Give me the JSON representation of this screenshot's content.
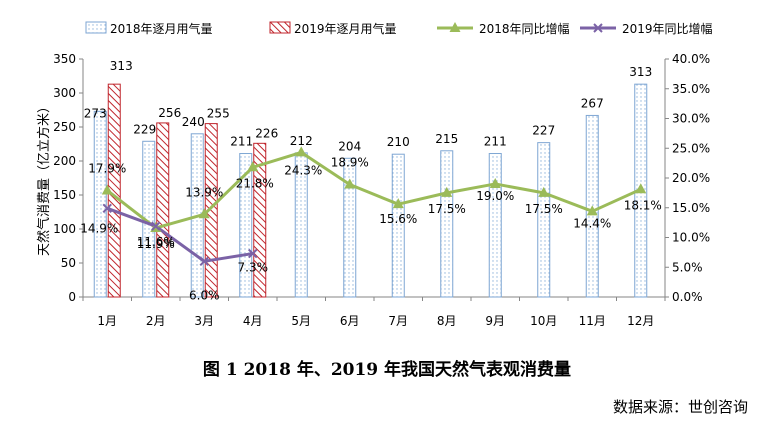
{
  "caption": "图 1 2018 年、2019 年我国天然气表观消费量",
  "source": "数据来源：世创咨询",
  "colors": {
    "bar_2018_stroke": "#7ea6d3",
    "bar_2018_dot": "#8fb3da",
    "bar_2019_stroke": "#c0262d",
    "line_2018": "#9bbb59",
    "line_2019": "#7b62a6",
    "axis": "#868686",
    "text": "#000000"
  },
  "chart_data": {
    "type": "bar+line",
    "categories": [
      "1月",
      "2月",
      "3月",
      "4月",
      "5月",
      "6月",
      "7月",
      "8月",
      "9月",
      "10月",
      "11月",
      "12月"
    ],
    "ylabel_left": "天然气消费量（亿立方米）",
    "ylim_left": [
      0,
      350
    ],
    "yticks_left": [
      "0",
      "50",
      "100",
      "150",
      "200",
      "250",
      "300",
      "350"
    ],
    "ylim_right": [
      0,
      40
    ],
    "yticks_right": [
      "0.0%",
      "5.0%",
      "10.0%",
      "15.0%",
      "20.0%",
      "25.0%",
      "30.0%",
      "35.0%",
      "40.0%"
    ],
    "legend_position": "top",
    "bars": [
      {
        "name": "2018年逐月用气量",
        "values": [
          273,
          229,
          240,
          211,
          212,
          204,
          210,
          215,
          211,
          227,
          267,
          313
        ],
        "labels": [
          "273",
          "229",
          "240",
          "211",
          "212",
          "204",
          "210",
          "215",
          "211",
          "227",
          "267",
          "313"
        ]
      },
      {
        "name": "2019年逐月用气量",
        "values": [
          313,
          256,
          255,
          226,
          null,
          null,
          null,
          null,
          null,
          null,
          null,
          null
        ],
        "labels": [
          "313",
          "256",
          "255",
          "226"
        ]
      }
    ],
    "lines": [
      {
        "name": "2018年同比增幅",
        "values": [
          17.9,
          11.6,
          13.9,
          21.8,
          24.3,
          18.9,
          15.6,
          17.5,
          19.0,
          17.5,
          14.4,
          18.1
        ],
        "labels": [
          "17.9%",
          "11.6%",
          "13.9%",
          "21.8%",
          "24.3%",
          "18.9%",
          "15.6%",
          "17.5%",
          "19.0%",
          "17.5%",
          "14.4%",
          "18.1%"
        ]
      },
      {
        "name": "2019年同比增幅",
        "values": [
          14.9,
          11.9,
          6.0,
          7.3,
          null,
          null,
          null,
          null,
          null,
          null,
          null,
          null
        ],
        "labels": [
          "14.9%",
          "11.9%",
          "6.0%",
          "7.3%"
        ]
      }
    ]
  }
}
